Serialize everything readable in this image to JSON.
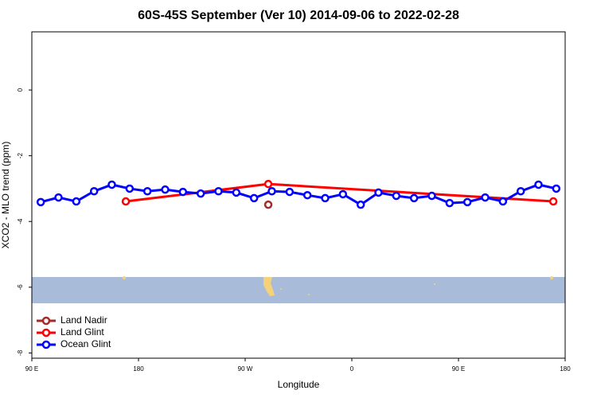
{
  "chart_data": {
    "type": "line",
    "title": "60S-45S September (Ver 10)   2014-09-06 to 2022-02-28",
    "x_label": "Longitude",
    "y_label": "XCO2 - MLO trend (ppm)",
    "xlim": [
      90,
      540
    ],
    "ylim": [
      -8.16,
      1.77
    ],
    "xticks": [
      {
        "value": 90,
        "label": "90 E"
      },
      180,
      {
        "value": 270,
        "label": "90 W"
      },
      {
        "value": 360,
        "label": "0"
      },
      {
        "value": 450,
        "label": "90 E"
      },
      {
        "value": 540,
        "label": "180"
      }
    ],
    "yticks": [
      0,
      -2,
      -4,
      -6,
      -8
    ],
    "legend": "bottom-left",
    "series": [
      {
        "name": "Land Nadir",
        "color": "#a52a2a",
        "x": [
          289.5
        ],
        "values": [
          -3.49
        ]
      },
      {
        "name": "Land Glint",
        "color": "#ff0000",
        "x": [
          169.3,
          289.5,
          530
        ],
        "values": [
          -3.39,
          -2.86,
          -3.39
        ]
      },
      {
        "name": "Ocean Glint",
        "color": "#0000ff",
        "x": [
          97.5,
          112.5,
          127.5,
          142.5,
          157.5,
          172.5,
          187.5,
          202.5,
          217.5,
          232.5,
          247.5,
          262.5,
          277.5,
          292.5,
          307.5,
          322.5,
          337.5,
          352.5,
          367.5,
          382.5,
          397.5,
          412.5,
          427.5,
          442.5,
          457.5,
          472.5,
          487.5,
          502.5,
          517.5,
          532.5
        ],
        "values": [
          -3.41,
          -3.27,
          -3.39,
          -3.08,
          -2.88,
          -3.0,
          -3.08,
          -3.03,
          -3.1,
          -3.15,
          -3.08,
          -3.12,
          -3.29,
          -3.08,
          -3.1,
          -3.2,
          -3.29,
          -3.17,
          -3.49,
          -3.12,
          -3.22,
          -3.29,
          -3.22,
          -3.44,
          -3.41,
          -3.27,
          -3.39,
          -3.08,
          -2.88,
          -3.0
        ]
      }
    ]
  }
}
